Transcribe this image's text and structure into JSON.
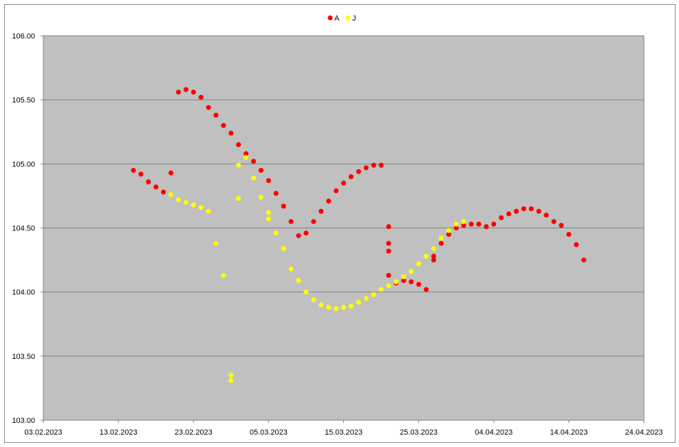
{
  "chart_data": {
    "type": "scatter",
    "title": "",
    "xlabel": "",
    "ylabel": "",
    "xlim": [
      "03.02.2023",
      "24.04.2023"
    ],
    "ylim": [
      103.0,
      106.0
    ],
    "x_ticks": [
      "03.02.2023",
      "13.02.2023",
      "23.02.2023",
      "05.03.2023",
      "15.03.2023",
      "25.03.2023",
      "04.04.2023",
      "14.04.2023",
      "24.04.2023"
    ],
    "y_ticks": [
      "103.00",
      "103.50",
      "104.00",
      "104.50",
      "105.00",
      "105.50",
      "106.00"
    ],
    "grid": "horizontal",
    "background": "#c0c0c0",
    "legend": "top-center",
    "series": [
      {
        "name": "A",
        "color": "#ff0000",
        "points": [
          [
            "15.02.2023",
            104.95
          ],
          [
            "16.02.2023",
            104.92
          ],
          [
            "17.02.2023",
            104.86
          ],
          [
            "18.02.2023",
            104.82
          ],
          [
            "19.02.2023",
            104.78
          ],
          [
            "20.02.2023",
            104.93
          ],
          [
            "21.02.2023",
            105.56
          ],
          [
            "22.02.2023",
            105.58
          ],
          [
            "23.02.2023",
            105.56
          ],
          [
            "24.02.2023",
            105.52
          ],
          [
            "25.02.2023",
            105.44
          ],
          [
            "26.02.2023",
            105.38
          ],
          [
            "27.02.2023",
            105.3
          ],
          [
            "28.02.2023",
            105.24
          ],
          [
            "01.03.2023",
            105.15
          ],
          [
            "02.03.2023",
            105.08
          ],
          [
            "03.03.2023",
            105.02
          ],
          [
            "04.03.2023",
            104.95
          ],
          [
            "05.03.2023",
            104.87
          ],
          [
            "06.03.2023",
            104.77
          ],
          [
            "07.03.2023",
            104.67
          ],
          [
            "08.03.2023",
            104.55
          ],
          [
            "09.03.2023",
            104.44
          ],
          [
            "10.03.2023",
            104.46
          ],
          [
            "11.03.2023",
            104.55
          ],
          [
            "12.03.2023",
            104.63
          ],
          [
            "13.03.2023",
            104.71
          ],
          [
            "14.03.2023",
            104.79
          ],
          [
            "15.03.2023",
            104.85
          ],
          [
            "16.03.2023",
            104.9
          ],
          [
            "17.03.2023",
            104.94
          ],
          [
            "18.03.2023",
            104.97
          ],
          [
            "19.03.2023",
            104.99
          ],
          [
            "20.03.2023",
            104.99
          ],
          [
            "21.03.2023",
            104.51
          ],
          [
            "21.03.2023",
            104.38
          ],
          [
            "21.03.2023",
            104.32
          ],
          [
            "21.03.2023",
            104.13
          ],
          [
            "22.03.2023",
            104.07
          ],
          [
            "23.03.2023",
            104.09
          ],
          [
            "24.03.2023",
            104.08
          ],
          [
            "25.03.2023",
            104.06
          ],
          [
            "26.03.2023",
            104.02
          ],
          [
            "27.03.2023",
            104.25
          ],
          [
            "27.03.2023",
            104.28
          ],
          [
            "28.03.2023",
            104.38
          ],
          [
            "29.03.2023",
            104.45
          ],
          [
            "30.03.2023",
            104.5
          ],
          [
            "31.03.2023",
            104.52
          ],
          [
            "01.04.2023",
            104.53
          ],
          [
            "02.04.2023",
            104.53
          ],
          [
            "03.04.2023",
            104.51
          ],
          [
            "04.04.2023",
            104.53
          ],
          [
            "05.04.2023",
            104.58
          ],
          [
            "06.04.2023",
            104.61
          ],
          [
            "07.04.2023",
            104.63
          ],
          [
            "08.04.2023",
            104.65
          ],
          [
            "09.04.2023",
            104.65
          ],
          [
            "10.04.2023",
            104.63
          ],
          [
            "11.04.2023",
            104.6
          ],
          [
            "12.04.2023",
            104.55
          ],
          [
            "13.04.2023",
            104.52
          ],
          [
            "14.04.2023",
            104.45
          ],
          [
            "15.04.2023",
            104.37
          ],
          [
            "16.04.2023",
            104.25
          ]
        ]
      },
      {
        "name": "J",
        "color": "#ffff00",
        "points": [
          [
            "20.02.2023",
            104.76
          ],
          [
            "21.02.2023",
            104.72
          ],
          [
            "22.02.2023",
            104.7
          ],
          [
            "23.02.2023",
            104.68
          ],
          [
            "24.02.2023",
            104.66
          ],
          [
            "25.02.2023",
            104.63
          ],
          [
            "26.02.2023",
            104.38
          ],
          [
            "27.02.2023",
            104.13
          ],
          [
            "28.02.2023",
            103.35
          ],
          [
            "28.02.2023",
            103.31
          ],
          [
            "01.03.2023",
            104.73
          ],
          [
            "01.03.2023",
            104.99
          ],
          [
            "02.03.2023",
            105.05
          ],
          [
            "03.03.2023",
            104.89
          ],
          [
            "04.03.2023",
            104.74
          ],
          [
            "05.03.2023",
            104.62
          ],
          [
            "05.03.2023",
            104.57
          ],
          [
            "06.03.2023",
            104.46
          ],
          [
            "07.03.2023",
            104.34
          ],
          [
            "08.03.2023",
            104.18
          ],
          [
            "09.03.2023",
            104.09
          ],
          [
            "10.03.2023",
            104.0
          ],
          [
            "11.03.2023",
            103.94
          ],
          [
            "12.03.2023",
            103.9
          ],
          [
            "13.03.2023",
            103.88
          ],
          [
            "14.03.2023",
            103.87
          ],
          [
            "15.03.2023",
            103.88
          ],
          [
            "16.03.2023",
            103.89
          ],
          [
            "17.03.2023",
            103.92
          ],
          [
            "18.03.2023",
            103.95
          ],
          [
            "19.03.2023",
            103.98
          ],
          [
            "20.03.2023",
            104.02
          ],
          [
            "21.03.2023",
            104.05
          ],
          [
            "22.03.2023",
            104.08
          ],
          [
            "23.03.2023",
            104.12
          ],
          [
            "24.03.2023",
            104.16
          ],
          [
            "25.03.2023",
            104.22
          ],
          [
            "26.03.2023",
            104.28
          ],
          [
            "27.03.2023",
            104.34
          ],
          [
            "28.03.2023",
            104.42
          ],
          [
            "29.03.2023",
            104.48
          ],
          [
            "30.03.2023",
            104.53
          ],
          [
            "31.03.2023",
            104.55
          ]
        ]
      }
    ]
  }
}
